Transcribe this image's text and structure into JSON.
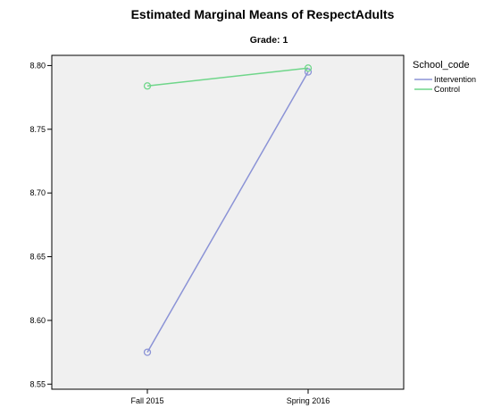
{
  "chart_data": {
    "type": "line",
    "title": "Estimated Marginal Means of RespectAdults",
    "subtitle": "Grade: 1",
    "categories": [
      "Fall 2015",
      "Spring 2016"
    ],
    "series": [
      {
        "name": "Intervention",
        "values": [
          8.575,
          8.795
        ],
        "color": "#8b93d6"
      },
      {
        "name": "Control",
        "values": [
          8.784,
          8.798
        ],
        "color": "#6fd68a"
      }
    ],
    "ylim": [
      8.546,
      8.808
    ],
    "yticks": [
      8.55,
      8.6,
      8.65,
      8.7,
      8.75,
      8.8
    ],
    "ytick_labels": [
      "8.55",
      "8.60",
      "8.65",
      "8.70",
      "8.75",
      "8.80"
    ],
    "legend": {
      "title": "School_code",
      "position": "right"
    },
    "xlabel": "",
    "ylabel": "",
    "grid": false,
    "plot_background": "#f0f0f0"
  }
}
